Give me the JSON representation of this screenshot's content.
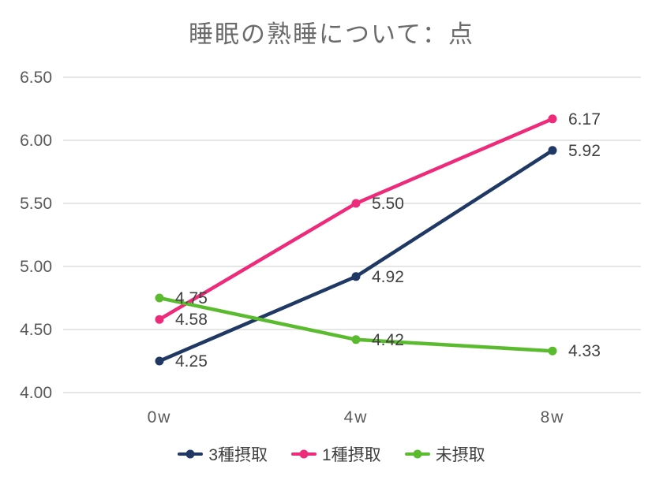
{
  "chart_data": {
    "type": "line",
    "title": "睡眠の熟睡について：点",
    "categories": [
      "0w",
      "4w",
      "8w"
    ],
    "series": [
      {
        "name": "3種摂取",
        "values": [
          4.25,
          4.92,
          5.92
        ],
        "color": "#1F3864"
      },
      {
        "name": "1種摂取",
        "values": [
          4.58,
          5.5,
          6.17
        ],
        "color": "#EE2A7B"
      },
      {
        "name": "未摂取",
        "values": [
          4.75,
          4.42,
          4.33
        ],
        "color": "#5BBB2F"
      }
    ],
    "ylim": [
      4.0,
      6.5
    ],
    "ytick_step": 0.5,
    "grid": true,
    "data_labels": true,
    "legend_position": "bottom",
    "colors": {
      "gridline": "#D6D6D6",
      "axis_text": "#595959",
      "label_text": "#404040",
      "title_text": "#6B6B6B"
    }
  }
}
